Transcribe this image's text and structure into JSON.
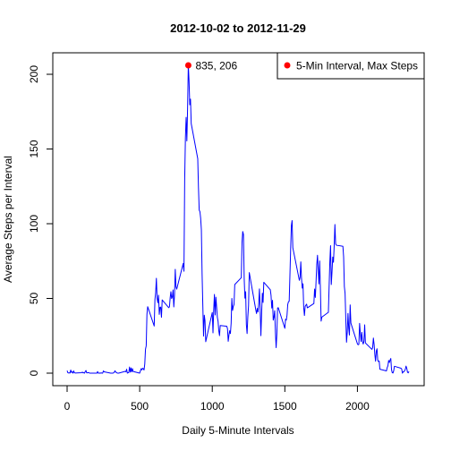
{
  "chart_data": {
    "type": "line",
    "title": "2012-10-02  to  2012-11-29",
    "xlabel": "Daily 5-Minute Intervals",
    "ylabel": "Average Steps per Interval",
    "xlim": [
      0,
      2355
    ],
    "ylim": [
      0,
      206
    ],
    "xticks": [
      0,
      500,
      1000,
      1500,
      2000
    ],
    "yticks": [
      0,
      50,
      100,
      150,
      200
    ],
    "grid": false,
    "legend_position": "top-right",
    "series": [
      {
        "name": "",
        "color": "#0000ff",
        "points": [
          [
            0,
            1.7
          ],
          [
            5,
            0.3
          ],
          [
            10,
            0.1
          ],
          [
            15,
            0.2
          ],
          [
            20,
            0.1
          ],
          [
            25,
            2.1
          ],
          [
            30,
            0.5
          ],
          [
            35,
            0.9
          ],
          [
            40,
            0
          ],
          [
            45,
            1.5
          ],
          [
            50,
            0.3
          ],
          [
            55,
            0.1
          ],
          [
            100,
            0.3
          ],
          [
            105,
            0.7
          ],
          [
            110,
            0.2
          ],
          [
            115,
            0.3
          ],
          [
            120,
            0
          ],
          [
            125,
            1.1
          ],
          [
            130,
            1.8
          ],
          [
            135,
            0.2
          ],
          [
            140,
            0.2
          ],
          [
            145,
            0.4
          ],
          [
            150,
            0.3
          ],
          [
            155,
            0
          ],
          [
            200,
            0
          ],
          [
            205,
            0
          ],
          [
            210,
            1.1
          ],
          [
            215,
            0
          ],
          [
            220,
            0
          ],
          [
            225,
            0.1
          ],
          [
            230,
            0
          ],
          [
            235,
            0.2
          ],
          [
            240,
            0
          ],
          [
            245,
            0
          ],
          [
            250,
            1.5
          ],
          [
            255,
            0.9
          ],
          [
            300,
            0
          ],
          [
            305,
            0
          ],
          [
            310,
            0
          ],
          [
            315,
            0
          ],
          [
            320,
            0.2
          ],
          [
            325,
            0.6
          ],
          [
            330,
            1.6
          ],
          [
            335,
            0.6
          ],
          [
            340,
            0.5
          ],
          [
            345,
            0.1
          ],
          [
            350,
            0
          ],
          [
            355,
            0
          ],
          [
            400,
            1.2
          ],
          [
            405,
            0.9
          ],
          [
            410,
            2.6
          ],
          [
            415,
            0
          ],
          [
            420,
            0.3
          ],
          [
            425,
            0.4
          ],
          [
            430,
            4.1
          ],
          [
            435,
            0.7
          ],
          [
            440,
            3.5
          ],
          [
            445,
            0.8
          ],
          [
            450,
            3.1
          ],
          [
            455,
            1.1
          ],
          [
            500,
            0
          ],
          [
            505,
            1.6
          ],
          [
            510,
            3
          ],
          [
            515,
            2.2
          ],
          [
            520,
            3.3
          ],
          [
            525,
            3
          ],
          [
            530,
            2.1
          ],
          [
            535,
            6.1
          ],
          [
            540,
            16
          ],
          [
            545,
            18.3
          ],
          [
            550,
            39.5
          ],
          [
            555,
            44.5
          ],
          [
            600,
            31.5
          ],
          [
            605,
            49.3
          ],
          [
            610,
            53.8
          ],
          [
            615,
            63.5
          ],
          [
            620,
            50
          ],
          [
            625,
            47.1
          ],
          [
            630,
            52.2
          ],
          [
            635,
            39.3
          ],
          [
            640,
            44
          ],
          [
            645,
            44.2
          ],
          [
            650,
            37.4
          ],
          [
            655,
            49
          ],
          [
            700,
            43.8
          ],
          [
            705,
            44.4
          ],
          [
            710,
            50.5
          ],
          [
            715,
            54.5
          ],
          [
            720,
            49.9
          ],
          [
            725,
            51
          ],
          [
            730,
            55.7
          ],
          [
            735,
            44.3
          ],
          [
            740,
            52.3
          ],
          [
            745,
            69.5
          ],
          [
            750,
            57.8
          ],
          [
            755,
            56.2
          ],
          [
            800,
            73.4
          ],
          [
            805,
            68.2
          ],
          [
            810,
            129.4
          ],
          [
            815,
            157.5
          ],
          [
            820,
            171.2
          ],
          [
            825,
            155.4
          ],
          [
            830,
            177.3
          ],
          [
            835,
            206.2
          ],
          [
            840,
            195.9
          ],
          [
            845,
            179.6
          ],
          [
            850,
            183.4
          ],
          [
            855,
            167
          ],
          [
            900,
            143.5
          ],
          [
            905,
            124
          ],
          [
            910,
            109.1
          ],
          [
            915,
            108.1
          ],
          [
            920,
            103.7
          ],
          [
            925,
            95.97
          ],
          [
            930,
            66.2
          ],
          [
            935,
            45.2
          ],
          [
            940,
            24.8
          ],
          [
            945,
            38.8
          ],
          [
            950,
            34.98
          ],
          [
            955,
            21.06
          ],
          [
            1000,
            40.6
          ],
          [
            1005,
            26.98
          ],
          [
            1010,
            42.4
          ],
          [
            1015,
            52.7
          ],
          [
            1020,
            38.9
          ],
          [
            1025,
            50.8
          ],
          [
            1030,
            44.3
          ],
          [
            1035,
            37.4
          ],
          [
            1040,
            34.7
          ],
          [
            1045,
            28.3
          ],
          [
            1050,
            25.1
          ],
          [
            1055,
            31.9
          ],
          [
            1100,
            31.4
          ],
          [
            1105,
            29.7
          ],
          [
            1110,
            21.3
          ],
          [
            1115,
            25.5
          ],
          [
            1120,
            28.4
          ],
          [
            1125,
            26.5
          ],
          [
            1130,
            33.4
          ],
          [
            1135,
            50
          ],
          [
            1140,
            42
          ],
          [
            1145,
            44.6
          ],
          [
            1150,
            46
          ],
          [
            1155,
            59.3
          ],
          [
            1200,
            63.9
          ],
          [
            1205,
            87.6
          ],
          [
            1210,
            94.8
          ],
          [
            1215,
            92.8
          ],
          [
            1220,
            63.4
          ],
          [
            1225,
            50.2
          ],
          [
            1230,
            54.5
          ],
          [
            1235,
            32.4
          ],
          [
            1240,
            26.5
          ],
          [
            1245,
            37.7
          ],
          [
            1250,
            45.1
          ],
          [
            1255,
            67.3
          ],
          [
            1300,
            42.3
          ],
          [
            1305,
            39.9
          ],
          [
            1310,
            43.3
          ],
          [
            1315,
            40.98
          ],
          [
            1320,
            46.2
          ],
          [
            1325,
            56.4
          ],
          [
            1330,
            42.8
          ],
          [
            1335,
            25.1
          ],
          [
            1340,
            39.97
          ],
          [
            1345,
            53.5
          ],
          [
            1350,
            47.3
          ],
          [
            1355,
            60.8
          ],
          [
            1400,
            55.8
          ],
          [
            1405,
            51.96
          ],
          [
            1410,
            43.6
          ],
          [
            1415,
            48.7
          ],
          [
            1420,
            35.5
          ],
          [
            1425,
            37.5
          ],
          [
            1430,
            41.8
          ],
          [
            1435,
            27.5
          ],
          [
            1440,
            17.1
          ],
          [
            1445,
            26.1
          ],
          [
            1450,
            43.6
          ],
          [
            1455,
            43.8
          ],
          [
            1500,
            30
          ],
          [
            1505,
            36.1
          ],
          [
            1510,
            35.5
          ],
          [
            1515,
            38.8
          ],
          [
            1520,
            45.96
          ],
          [
            1525,
            47.8
          ],
          [
            1530,
            48.1
          ],
          [
            1535,
            65.3
          ],
          [
            1540,
            82.9
          ],
          [
            1545,
            98.7
          ],
          [
            1550,
            102.1
          ],
          [
            1555,
            83.96
          ],
          [
            1600,
            62.1
          ],
          [
            1605,
            64.1
          ],
          [
            1610,
            74.5
          ],
          [
            1615,
            63.2
          ],
          [
            1620,
            56.9
          ],
          [
            1625,
            59.8
          ],
          [
            1630,
            43.9
          ],
          [
            1635,
            38.6
          ],
          [
            1640,
            44.7
          ],
          [
            1645,
            45.5
          ],
          [
            1650,
            46.2
          ],
          [
            1655,
            43.7
          ],
          [
            1700,
            46.6
          ],
          [
            1705,
            56.3
          ],
          [
            1710,
            50.7
          ],
          [
            1715,
            61.2
          ],
          [
            1720,
            72.7
          ],
          [
            1725,
            78.9
          ],
          [
            1730,
            68.9
          ],
          [
            1735,
            59.7
          ],
          [
            1740,
            75.1
          ],
          [
            1745,
            56.5
          ],
          [
            1750,
            34.8
          ],
          [
            1755,
            37.5
          ],
          [
            1800,
            40.7
          ],
          [
            1805,
            58
          ],
          [
            1810,
            74.7
          ],
          [
            1815,
            85.3
          ],
          [
            1820,
            59.3
          ],
          [
            1825,
            67.8
          ],
          [
            1830,
            77.7
          ],
          [
            1835,
            74.2
          ],
          [
            1840,
            85.3
          ],
          [
            1845,
            99.5
          ],
          [
            1850,
            86.6
          ],
          [
            1855,
            85.6
          ],
          [
            1900,
            84.9
          ],
          [
            1905,
            77.8
          ],
          [
            1910,
            58
          ],
          [
            1915,
            53.4
          ],
          [
            1920,
            36.3
          ],
          [
            1925,
            20.7
          ],
          [
            1930,
            27.4
          ],
          [
            1935,
            40
          ],
          [
            1940,
            30.2
          ],
          [
            1945,
            25.5
          ],
          [
            1950,
            45.7
          ],
          [
            1955,
            33.5
          ],
          [
            2000,
            19.6
          ],
          [
            2005,
            19
          ],
          [
            2010,
            19.3
          ],
          [
            2015,
            33.3
          ],
          [
            2020,
            26.8
          ],
          [
            2025,
            21.2
          ],
          [
            2030,
            27.3
          ],
          [
            2035,
            21.3
          ],
          [
            2040,
            19.5
          ],
          [
            2045,
            21.3
          ],
          [
            2050,
            32.3
          ],
          [
            2055,
            20.2
          ],
          [
            2100,
            15.9
          ],
          [
            2105,
            17.2
          ],
          [
            2110,
            23.5
          ],
          [
            2115,
            19.2
          ],
          [
            2120,
            12.5
          ],
          [
            2125,
            8
          ],
          [
            2130,
            14.7
          ],
          [
            2135,
            16.3
          ],
          [
            2140,
            8.7
          ],
          [
            2145,
            7.8
          ],
          [
            2150,
            8.1
          ],
          [
            2155,
            2.6
          ],
          [
            2200,
            1.5
          ],
          [
            2205,
            3.7
          ],
          [
            2210,
            4.8
          ],
          [
            2215,
            8.5
          ],
          [
            2220,
            7.1
          ],
          [
            2225,
            8.7
          ],
          [
            2230,
            9.8
          ],
          [
            2235,
            2.2
          ],
          [
            2240,
            0.3
          ],
          [
            2245,
            0.1
          ],
          [
            2250,
            1.6
          ],
          [
            2255,
            4.6
          ],
          [
            2300,
            3.3
          ],
          [
            2305,
            2.8
          ],
          [
            2310,
            0
          ],
          [
            2315,
            0.8
          ],
          [
            2320,
            0.96
          ],
          [
            2325,
            1.6
          ],
          [
            2330,
            2.6
          ],
          [
            2335,
            4.7
          ],
          [
            2340,
            3.3
          ],
          [
            2345,
            0.6
          ],
          [
            2350,
            0.2
          ],
          [
            2355,
            1.1
          ]
        ]
      }
    ],
    "highlight": {
      "x": 835,
      "y": 206,
      "color": "#ff0000",
      "label": "835, 206"
    },
    "legend": {
      "label": "5-Min Interval, Max Steps",
      "marker_color": "#ff0000"
    }
  }
}
